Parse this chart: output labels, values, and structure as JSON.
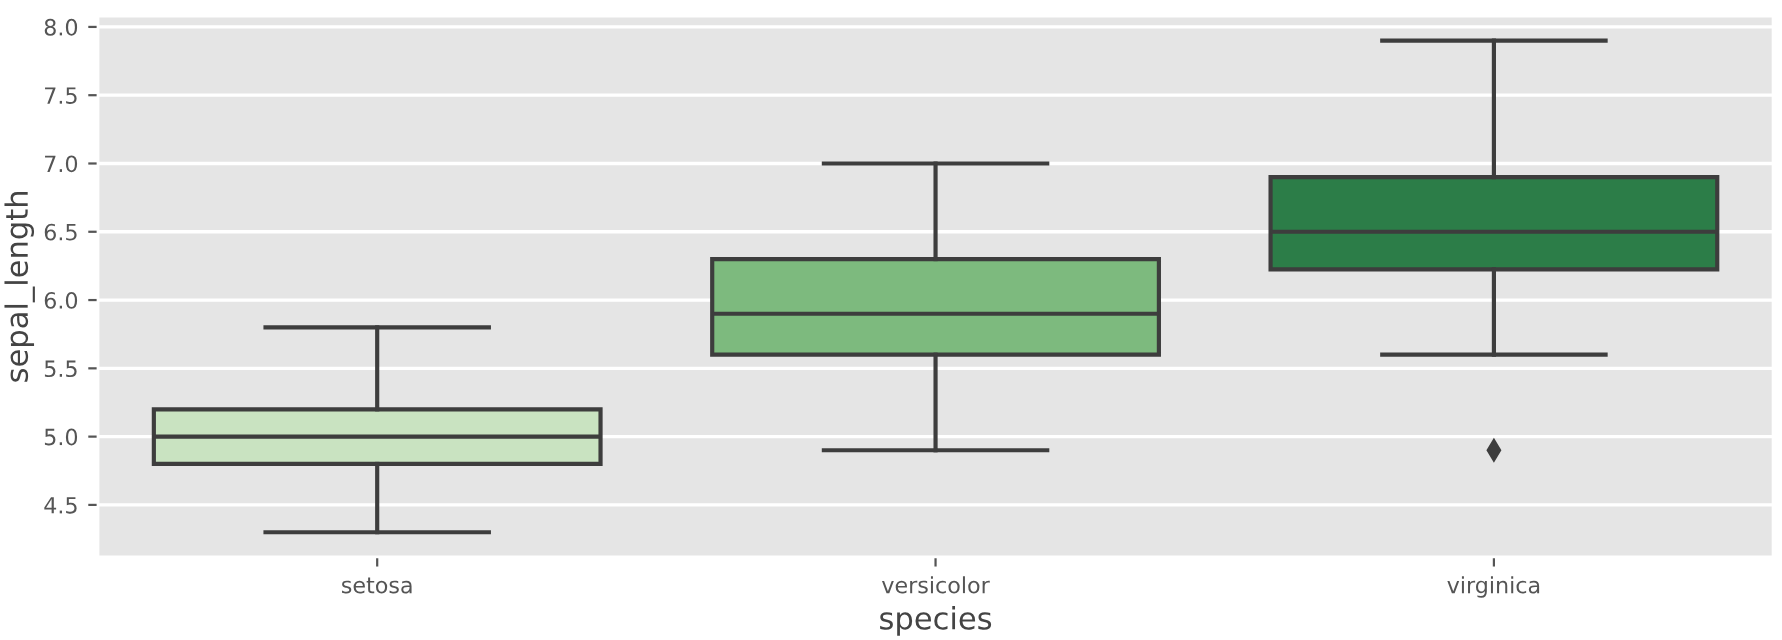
{
  "chart_data": {
    "type": "box",
    "xlabel": "species",
    "ylabel": "sepal_length",
    "categories": [
      "setosa",
      "versicolor",
      "virginica"
    ],
    "colors": [
      "#c9e3c1",
      "#7dba7e",
      "#2c7d48"
    ],
    "boxes": [
      {
        "low": 4.3,
        "q1": 4.8,
        "median": 5.0,
        "q3": 5.2,
        "high": 5.8
      },
      {
        "low": 4.9,
        "q1": 5.6,
        "median": 5.9,
        "q3": 6.3,
        "high": 7.0
      },
      {
        "low": 5.6,
        "q1": 6.225,
        "median": 6.5,
        "q3": 6.9,
        "high": 7.9,
        "outliers": [
          4.9
        ]
      }
    ],
    "ylim": [
      4.12,
      8.08
    ],
    "yticks": [
      {
        "value": 4.5,
        "label": "4.5"
      },
      {
        "value": 5.0,
        "label": "5.0"
      },
      {
        "value": 5.5,
        "label": "5.5"
      },
      {
        "value": 6.0,
        "label": "6.0"
      },
      {
        "value": 6.5,
        "label": "6.5"
      },
      {
        "value": 7.0,
        "label": "7.0"
      },
      {
        "value": 7.5,
        "label": "7.5"
      },
      {
        "value": 8.0,
        "label": "8.0"
      }
    ],
    "grid": "y",
    "marker": "diamond"
  }
}
